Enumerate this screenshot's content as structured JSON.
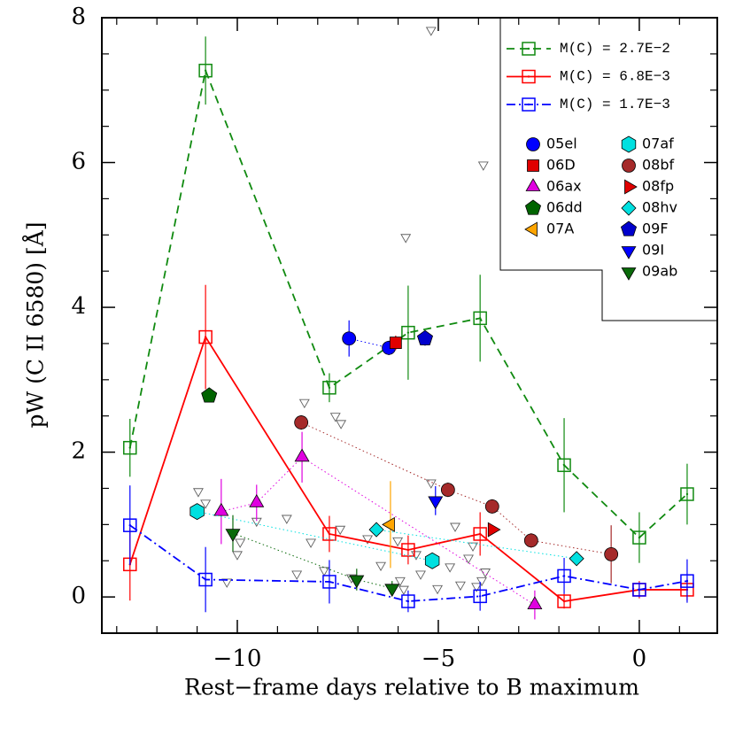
{
  "chart_data": {
    "type": "scatter",
    "x_label": "Rest−frame days relative to B maximum",
    "y_label": "pW (C II 6580) [Å]",
    "xlim": [
      -13.37,
      1.94
    ],
    "ylim": [
      -0.5,
      8
    ],
    "xticks": [
      {
        "value": -10,
        "label": "−10"
      },
      {
        "value": -5,
        "label": "−5"
      },
      0
    ],
    "xminorticks": [
      -13,
      -12,
      -11,
      -9,
      -8,
      -7,
      -6,
      -4,
      -3,
      -2,
      -1,
      1
    ],
    "yticks": [
      0,
      2,
      4,
      6,
      8
    ],
    "yminorticks": [
      0.5,
      1,
      1.5,
      2.5,
      3,
      3.5,
      4.5,
      5,
      5.5,
      6.5,
      7,
      7.5
    ],
    "legend": "upper right",
    "series": [
      {
        "name": "M(C) = 2.7E−2",
        "color": "#108a10",
        "marker": "open-square",
        "linestyle": "dashed",
        "x": [
          -12.67,
          -10.79,
          -7.71,
          -5.75,
          -3.96,
          -1.87,
          0,
          1.19
        ],
        "values": [
          2.06,
          7.27,
          2.89,
          3.65,
          3.85,
          1.82,
          0.82,
          1.42
        ],
        "errors": [
          0.4,
          0.47,
          0.2,
          0.65,
          0.6,
          0.65,
          0.35,
          0.42
        ]
      },
      {
        "name": "M(C) = 6.8E−3",
        "color": "#ff0000",
        "marker": "open-square",
        "linestyle": "solid",
        "x": [
          -12.67,
          -10.79,
          -7.71,
          -5.75,
          -3.96,
          -1.87,
          0,
          1.19
        ],
        "values": [
          0.45,
          3.59,
          0.87,
          0.65,
          0.87,
          -0.06,
          0.1,
          0.1
        ],
        "errors": [
          0.5,
          0.72,
          0.25,
          0.2,
          0.3,
          0.1,
          0.12,
          0.15
        ]
      },
      {
        "name": "M(C) = 1.7E−3",
        "color": "#0000ff",
        "marker": "open-square",
        "linestyle": "dashdot",
        "x": [
          -12.67,
          -10.79,
          -7.71,
          -5.75,
          -3.96,
          -1.87,
          0,
          1.19
        ],
        "values": [
          0.99,
          0.24,
          0.21,
          -0.06,
          0.01,
          0.29,
          0.1,
          0.22
        ],
        "errors": [
          0.55,
          0.45,
          0.3,
          0.15,
          0.2,
          0.25,
          0.1,
          0.3
        ]
      },
      {
        "name": "05el",
        "color": "#0000ff",
        "marker": "circle",
        "linestyle": "dotted",
        "x": [
          -7.22,
          -6.23
        ],
        "values": [
          3.57,
          3.44
        ],
        "errors": [
          0.25,
          0.1
        ]
      },
      {
        "name": "06D",
        "color": "#e00000",
        "marker": "square",
        "linestyle": "dotted",
        "x": [
          -6.06
        ],
        "values": [
          3.51
        ],
        "errors": [
          0.1
        ]
      },
      {
        "name": "06ax",
        "color": "#e000e0",
        "marker": "triangle-up",
        "linestyle": "dotted",
        "x": [
          -10.4,
          -9.52,
          -8.39,
          -2.6
        ],
        "values": [
          1.18,
          1.3,
          1.93,
          -0.11
        ],
        "errors": [
          0.45,
          0.25,
          0.35,
          0.2
        ]
      },
      {
        "name": "06dd",
        "color": "#006400",
        "marker": "pentagon",
        "linestyle": "dotted",
        "x": [
          -10.7
        ],
        "values": [
          2.78
        ],
        "errors": [
          0.05
        ]
      },
      {
        "name": "07A",
        "color": "#ffa500",
        "marker": "triangle-left",
        "linestyle": "dotted",
        "x": [
          -6.19
        ],
        "values": [
          1.0
        ],
        "errors": [
          0.6
        ]
      },
      {
        "name": "07af",
        "color": "#00e0e0",
        "marker": "hexagon",
        "linestyle": "dotted",
        "x": [
          -11.0,
          -5.15
        ],
        "values": [
          1.18,
          0.5
        ],
        "errors": [
          0.1,
          0.1
        ]
      },
      {
        "name": "08bf",
        "color": "#a52a2a",
        "marker": "circle",
        "linestyle": "dotted",
        "x": [
          -8.41,
          -4.76,
          -3.66,
          -2.69,
          -0.7
        ],
        "values": [
          2.41,
          1.48,
          1.25,
          0.78,
          0.59
        ],
        "errors": [
          0.1,
          0.1,
          0.1,
          0.1,
          0.4
        ]
      },
      {
        "name": "08fp",
        "color": "#e00000",
        "marker": "triangle-right",
        "linestyle": "dotted",
        "x": [
          -3.66
        ],
        "values": [
          0.93
        ],
        "errors": [
          0.05
        ]
      },
      {
        "name": "08hv",
        "color": "#00e0e0",
        "marker": "diamond",
        "linestyle": "dotted",
        "x": [
          -6.54,
          -1.56
        ],
        "values": [
          0.93,
          0.53
        ],
        "errors": [
          0.1,
          0.05
        ]
      },
      {
        "name": "09F",
        "color": "#0000cc",
        "marker": "pentagon",
        "linestyle": "dotted",
        "x": [
          -5.33
        ],
        "values": [
          3.57
        ],
        "errors": [
          0.1
        ]
      },
      {
        "name": "09I",
        "color": "#0000ff",
        "marker": "triangle-down",
        "linestyle": "dotted",
        "x": [
          -5.07
        ],
        "values": [
          1.33
        ],
        "errors": [
          0.2
        ]
      },
      {
        "name": "09ab",
        "color": "#0a6a0a",
        "marker": "triangle-down",
        "linestyle": "dotted",
        "x": [
          -10.11,
          -7.03,
          -6.15
        ],
        "values": [
          0.88,
          0.24,
          0.12
        ],
        "errors": [
          0.25,
          0.15,
          0.1
        ]
      }
    ],
    "upper_limits": {
      "color": "#606060",
      "x": [
        -10.97,
        -10.79,
        -10.26,
        -10.0,
        -9.93,
        -9.52,
        -8.77,
        -8.52,
        -8.33,
        -7.56,
        -7.42,
        -8.17,
        -7.84,
        -7.44,
        -7.16,
        -6.76,
        -6.43,
        -6.01,
        -5.95,
        -5.86,
        -5.55,
        -5.44,
        -5.18,
        -5.81,
        -5.18,
        -3.88,
        -5.02,
        -4.71,
        -4.58,
        -4.45,
        -4.25,
        -4.14,
        -4.05,
        -3.92,
        -3.83
      ],
      "y": [
        1.46,
        1.3,
        0.21,
        0.59,
        0.76,
        1.05,
        1.09,
        0.32,
        2.69,
        2.5,
        2.4,
        0.76,
        0.37,
        0.94,
        0.27,
        0.81,
        0.44,
        0.78,
        0.23,
        0.11,
        0.59,
        0.32,
        1.58,
        4.97,
        7.83,
        5.97,
        0.12,
        0.42,
        0.98,
        0.17,
        0.54,
        0.71,
        0.15,
        0.23,
        0.35
      ]
    }
  }
}
